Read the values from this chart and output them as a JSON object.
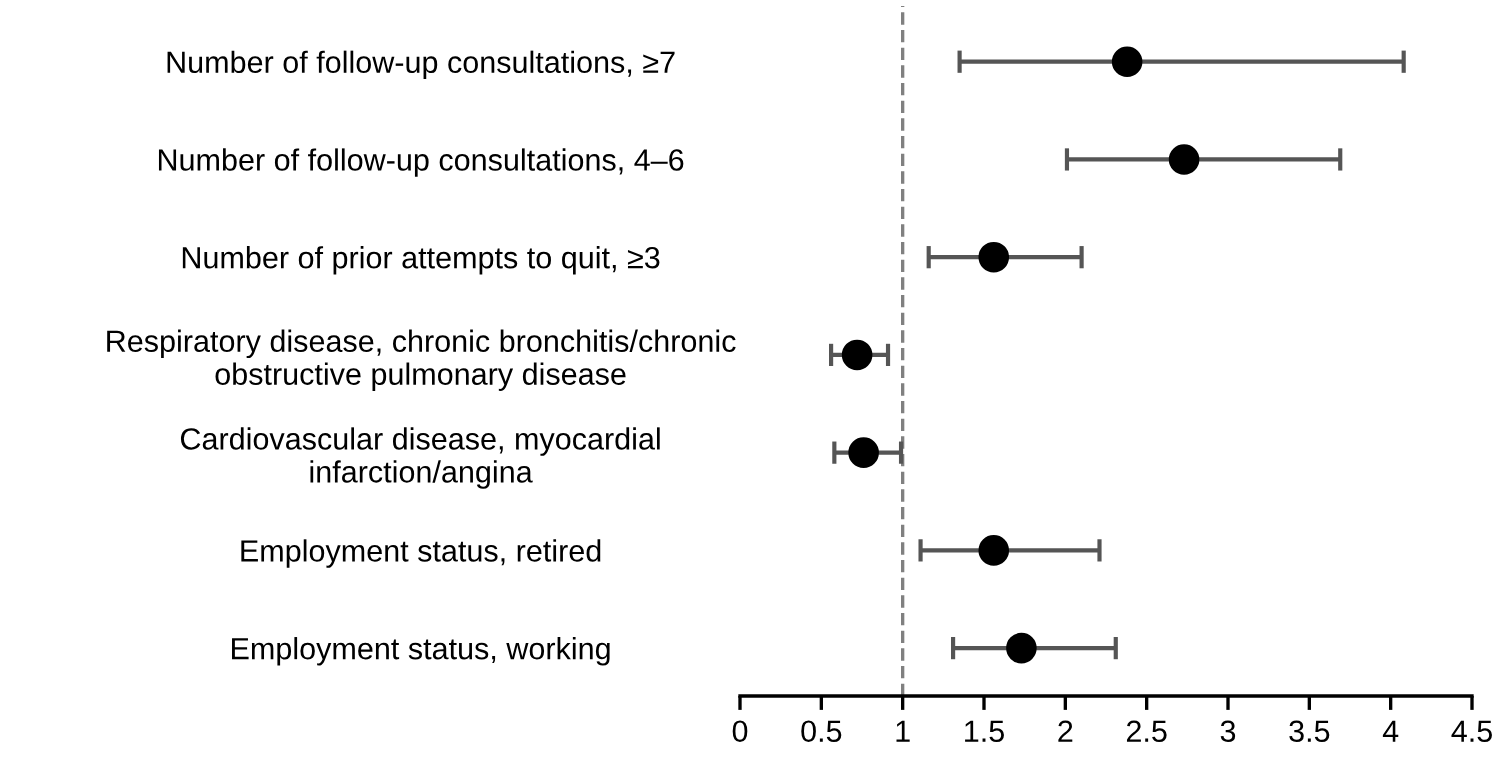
{
  "chart_data": {
    "type": "scatter",
    "orientation": "horizontal",
    "categories": [
      "Number of follow-up consultations, ≥7",
      "Number of follow-up consultations, 4–6",
      "Number of prior attempts to quit, ≥3",
      "Respiratory disease, chronic bronchitis/chronic\nobstructive pulmonary disease",
      "Cardiovascular disease, myocardial\ninfarction/angina",
      "Employment status, retired",
      "Employment status, working"
    ],
    "values": [
      2.38,
      2.73,
      1.56,
      0.72,
      0.76,
      1.56,
      1.73
    ],
    "errors": [
      [
        1.35,
        4.08
      ],
      [
        2.01,
        3.69
      ],
      [
        1.16,
        2.1
      ],
      [
        0.56,
        0.91
      ],
      [
        0.58,
        0.99
      ],
      [
        1.11,
        2.21
      ],
      [
        1.31,
        2.31
      ]
    ],
    "color": "#000000",
    "marker": "circle",
    "xlim": [
      0,
      4.5
    ],
    "xticks": [
      0,
      0.5,
      1,
      1.5,
      2,
      2.5,
      3,
      3.5,
      4,
      4.5
    ],
    "ref_lines": [
      {
        "axis": "x",
        "value": 1,
        "label": null,
        "color": "#808080",
        "line_style": "dashed"
      }
    ]
  }
}
